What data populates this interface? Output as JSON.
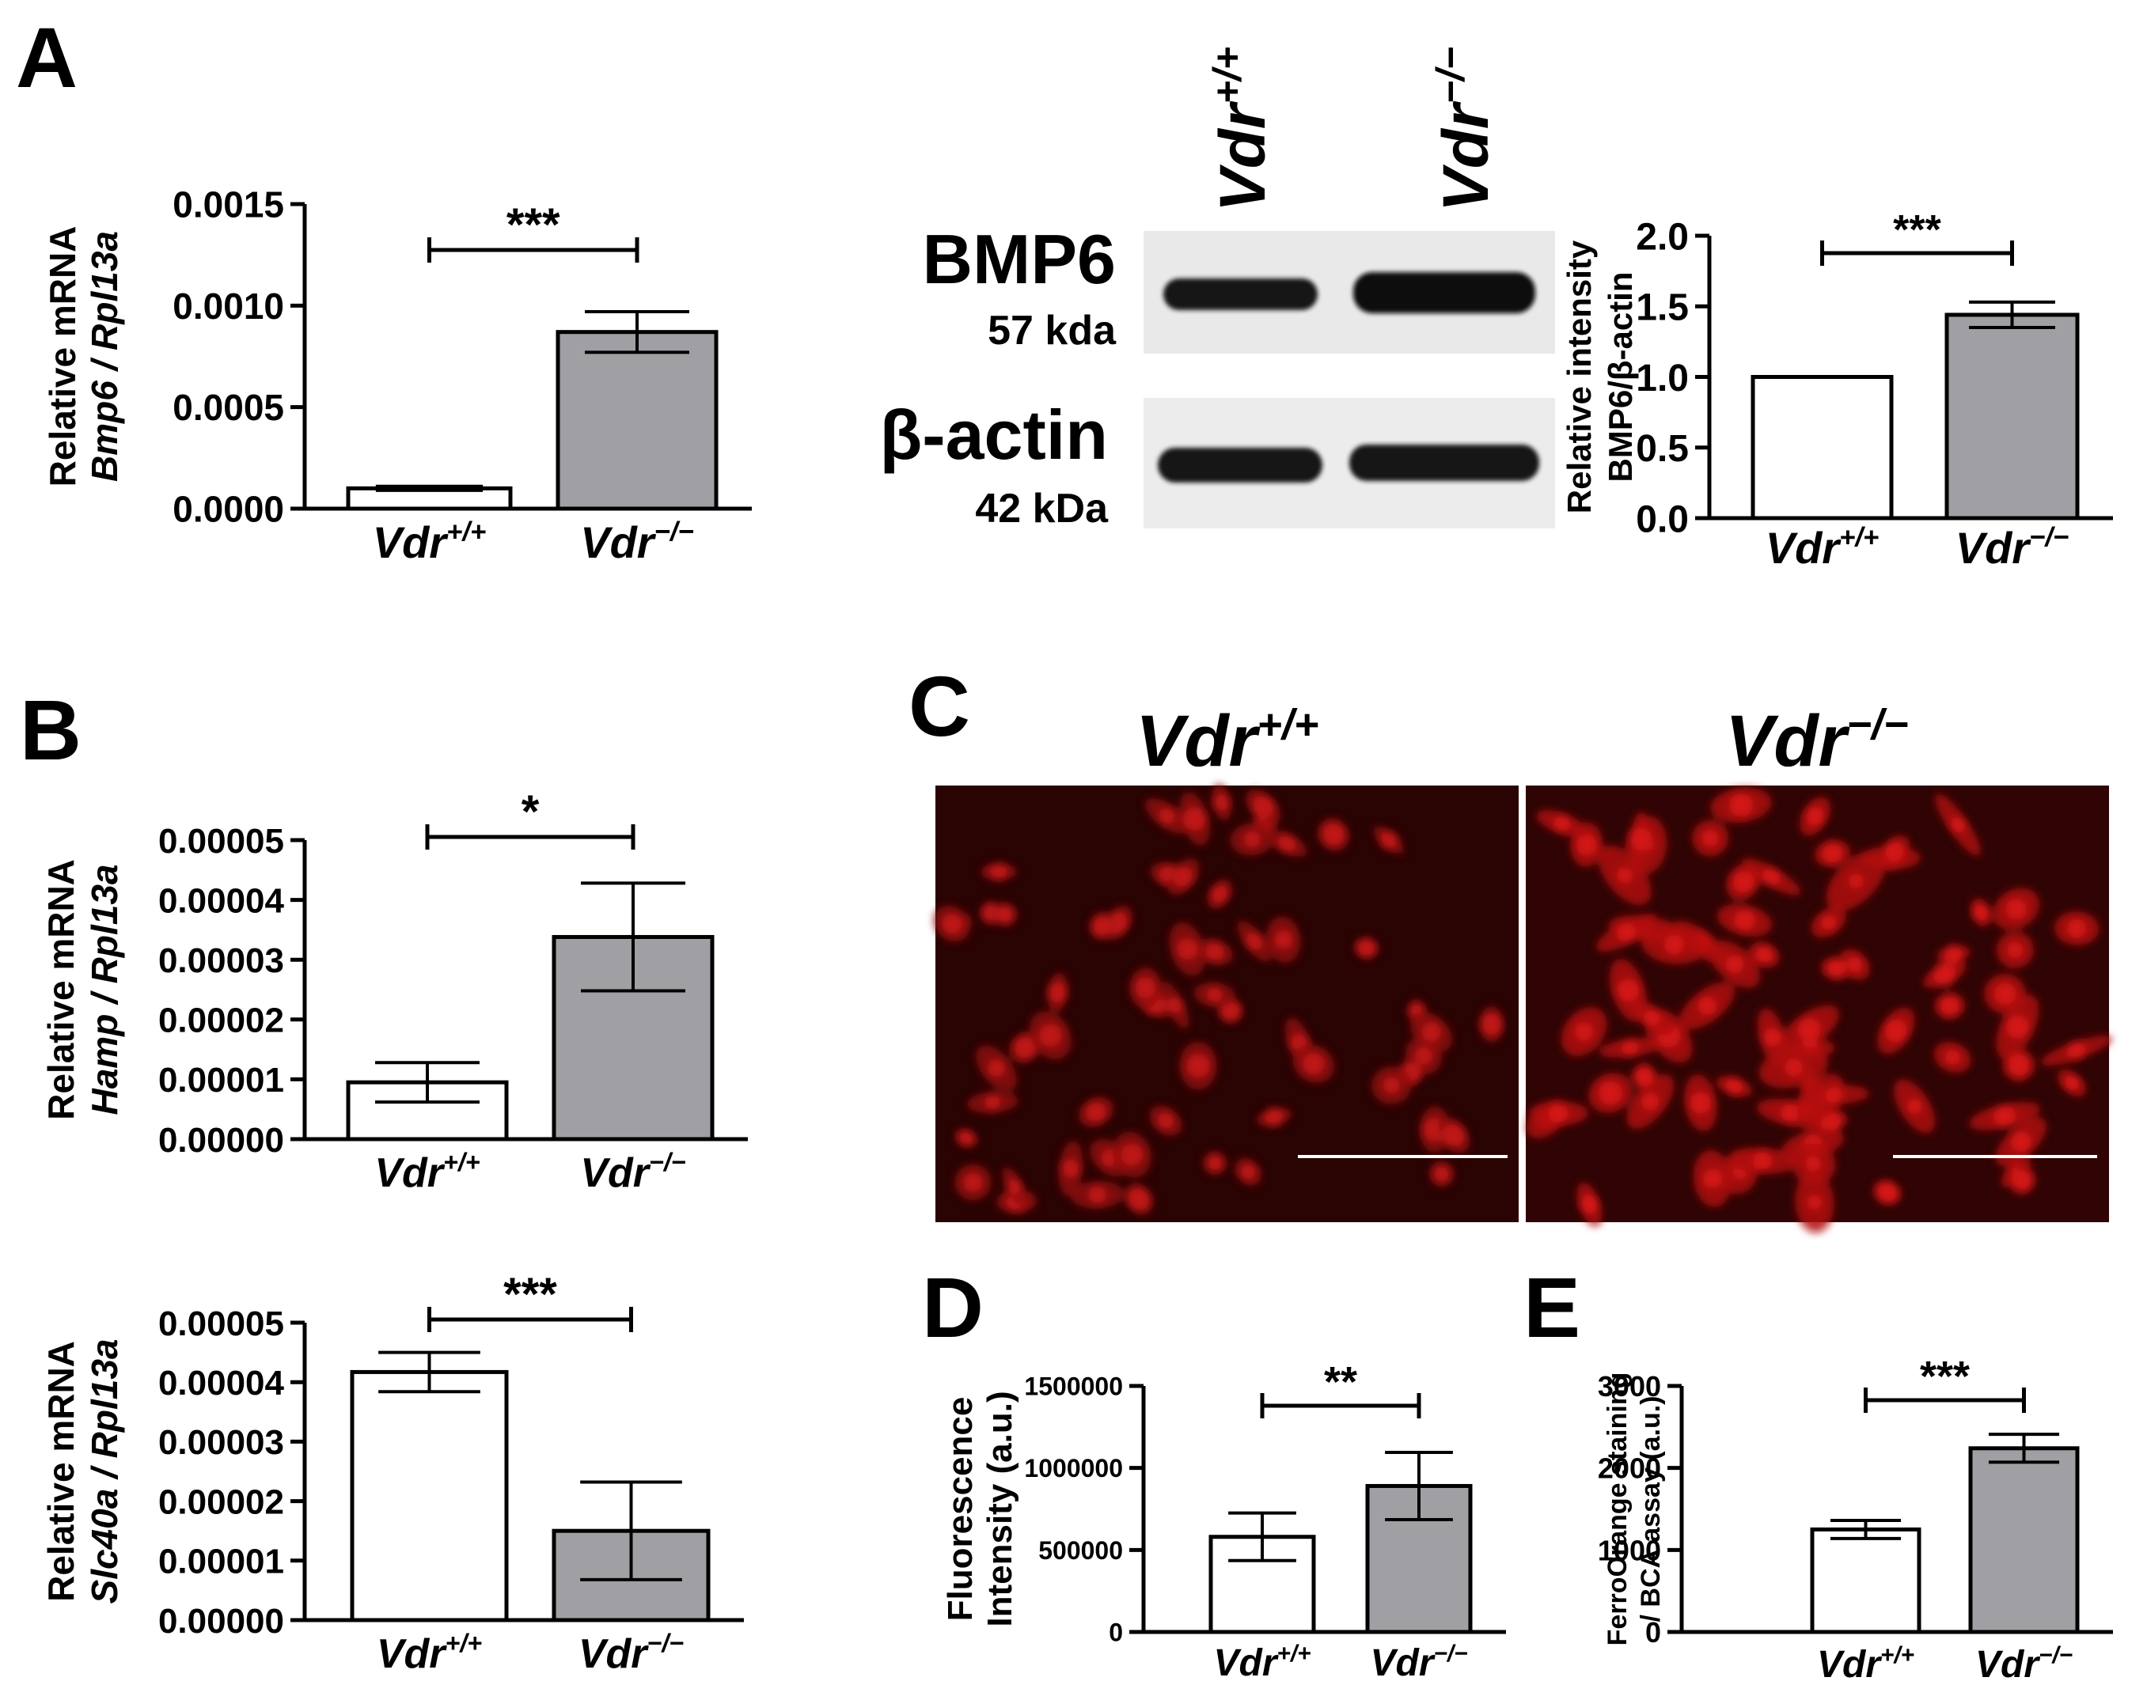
{
  "panel_letters": {
    "A": "A",
    "B": "B",
    "C": "C",
    "D": "D",
    "E": "E"
  },
  "groups": {
    "wt": {
      "base": "Vdr",
      "sup": "+/+"
    },
    "ko": {
      "base": "Vdr",
      "sup": "−/−"
    }
  },
  "colors": {
    "wt_bar": "#ffffff",
    "ko_bar": "#a0a0a4",
    "stroke": "#000000",
    "fluor_red": "#c81010",
    "fluor_bg": "#2a0303"
  },
  "western": {
    "lane_wt": {
      "base": "Vdr",
      "sup": "+/+"
    },
    "lane_ko": {
      "base": "Vdr",
      "sup": "−/−"
    },
    "blots": [
      {
        "protein": "BMP6",
        "size": "57 kda"
      },
      {
        "protein": "β-actin",
        "size": "42 kDa"
      }
    ]
  },
  "micrograph": {
    "wt_title": {
      "base": "Vdr",
      "sup": "+/+"
    },
    "ko_title": {
      "base": "Vdr",
      "sup": "−/−"
    }
  },
  "chart_data": [
    {
      "id": "bmp6-mrna",
      "type": "bar",
      "ylabel_line1": "Relative mRNA",
      "ylabel_line2": "Bmp6 / Rpl13a",
      "ylim": [
        0,
        0.0015
      ],
      "yticks": [
        "0.0000",
        "0.0005",
        "0.0010",
        "0.0015"
      ],
      "tick_values": [
        0,
        0.0005,
        0.001,
        0.0015
      ],
      "categories": [
        "Vdr+/+",
        "Vdr−/−"
      ],
      "values": [
        0.0001,
        0.00087
      ],
      "errors": [
        1e-05,
        0.0001
      ],
      "significance": "***"
    },
    {
      "id": "bmp6-protein",
      "type": "bar",
      "ylabel_line1": "Relative intensity",
      "ylabel_line2": "BMP6/β-actin",
      "ylim": [
        0,
        2.0
      ],
      "yticks": [
        "0.0",
        "0.5",
        "1.0",
        "1.5",
        "2.0"
      ],
      "tick_values": [
        0,
        0.5,
        1.0,
        1.5,
        2.0
      ],
      "categories": [
        "Vdr+/+",
        "Vdr−/−"
      ],
      "values": [
        1.0,
        1.44
      ],
      "errors": [
        0,
        0.09
      ],
      "significance": "***"
    },
    {
      "id": "hamp-mrna",
      "type": "bar",
      "ylabel_line1": "Relative mRNA",
      "ylabel_line2": "Hamp / Rpl13a",
      "ylim": [
        0,
        5e-05
      ],
      "yticks": [
        "0.00000",
        "0.00001",
        "0.00002",
        "0.00003",
        "0.00004",
        "0.00005"
      ],
      "tick_values": [
        0,
        1e-05,
        2e-05,
        3e-05,
        4e-05,
        5e-05
      ],
      "categories": [
        "Vdr+/+",
        "Vdr−/−"
      ],
      "values": [
        9.5e-06,
        3.38e-05
      ],
      "errors": [
        3.3e-06,
        9e-06
      ],
      "significance": "*"
    },
    {
      "id": "slc40a-mrna",
      "type": "bar",
      "ylabel_line1": "Relative mRNA",
      "ylabel_line2": "Slc40a / Rpl13a",
      "ylim": [
        0,
        5e-05
      ],
      "yticks": [
        "0.00000",
        "0.00001",
        "0.00002",
        "0.00003",
        "0.00004",
        "0.00005"
      ],
      "tick_values": [
        0,
        1e-05,
        2e-05,
        3e-05,
        4e-05,
        5e-05
      ],
      "categories": [
        "Vdr+/+",
        "Vdr−/−"
      ],
      "values": [
        4.17e-05,
        1.5e-05
      ],
      "errors": [
        3.3e-06,
        8.2e-06
      ],
      "significance": "***"
    },
    {
      "id": "fluorescence",
      "type": "bar",
      "ylabel_line1": "Fluorescence",
      "ylabel_line2": "Intensity (a.u.)",
      "ylim": [
        0,
        1500000
      ],
      "yticks": [
        "0",
        "500000",
        "1000000",
        "1500000"
      ],
      "tick_values": [
        0,
        500000,
        1000000,
        1500000
      ],
      "categories": [
        "Vdr+/+",
        "Vdr−/−"
      ],
      "values": [
        580000,
        890000
      ],
      "errors": [
        145000,
        205000
      ],
      "significance": "**"
    },
    {
      "id": "ferroorange",
      "type": "bar",
      "ylabel_line1": "FerroOrange staining",
      "ylabel_line2": "/ BCA assay (a.u.)",
      "ylim": [
        0,
        3000
      ],
      "yticks": [
        "0",
        "1000",
        "2000",
        "3000"
      ],
      "tick_values": [
        0,
        1000,
        2000,
        3000
      ],
      "categories": [
        "Vdr+/+",
        "Vdr−/−"
      ],
      "values": [
        1250,
        2240
      ],
      "errors": [
        110,
        170
      ],
      "significance": "***"
    }
  ]
}
